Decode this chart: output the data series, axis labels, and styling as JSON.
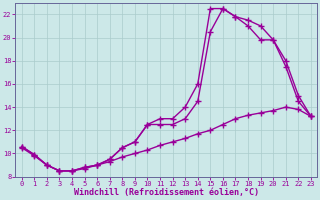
{
  "xlabel": "Windchill (Refroidissement éolien,°C)",
  "bg_color": "#cce8e8",
  "line_color": "#990099",
  "grid_color": "#aacccc",
  "xlim": [
    -0.5,
    23.5
  ],
  "ylim": [
    8,
    23
  ],
  "xticks": [
    0,
    1,
    2,
    3,
    4,
    5,
    6,
    7,
    8,
    9,
    10,
    11,
    12,
    13,
    14,
    15,
    16,
    17,
    18,
    19,
    20,
    21,
    22,
    23
  ],
  "yticks": [
    8,
    10,
    12,
    14,
    16,
    18,
    20,
    22
  ],
  "c1x": [
    0,
    1,
    2,
    3,
    4,
    5,
    6,
    7,
    8,
    9,
    10,
    11,
    12,
    13,
    14,
    15,
    16,
    17,
    18,
    19,
    20,
    21,
    22,
    23
  ],
  "c1y": [
    10.6,
    9.9,
    9.0,
    8.5,
    8.5,
    8.8,
    9.0,
    9.5,
    10.5,
    11.0,
    12.5,
    13.0,
    13.0,
    14.0,
    16.0,
    22.5,
    22.5,
    21.8,
    21.5,
    21.0,
    19.8,
    18.0,
    15.0,
    13.2
  ],
  "c2x": [
    0,
    1,
    2,
    3,
    4,
    5,
    6,
    7,
    8,
    9,
    10,
    11,
    12,
    13,
    14,
    15,
    16,
    17,
    18,
    19,
    20,
    21,
    22,
    23
  ],
  "c2y": [
    10.6,
    9.9,
    9.0,
    8.5,
    8.5,
    8.8,
    9.0,
    9.5,
    10.5,
    11.0,
    12.5,
    12.5,
    12.5,
    13.0,
    14.5,
    20.5,
    22.5,
    21.8,
    21.0,
    19.8,
    19.8,
    17.5,
    14.5,
    13.2
  ],
  "c3x": [
    0,
    1,
    2,
    3,
    4,
    5,
    6,
    7,
    8,
    9,
    10,
    11,
    12,
    13,
    14,
    15,
    16,
    17,
    18,
    19,
    20,
    21,
    22,
    23
  ],
  "c3y": [
    10.5,
    9.8,
    9.0,
    8.5,
    8.5,
    8.7,
    9.0,
    9.3,
    9.7,
    10.0,
    10.3,
    10.7,
    11.0,
    11.3,
    11.7,
    12.0,
    12.5,
    13.0,
    13.3,
    13.5,
    13.7,
    14.0,
    13.8,
    13.2
  ],
  "marker": "+",
  "markersize": 4,
  "markeredgewidth": 1.0,
  "linewidth": 1.0,
  "tick_fontsize": 5,
  "label_fontsize": 6,
  "spine_color": "#666699"
}
